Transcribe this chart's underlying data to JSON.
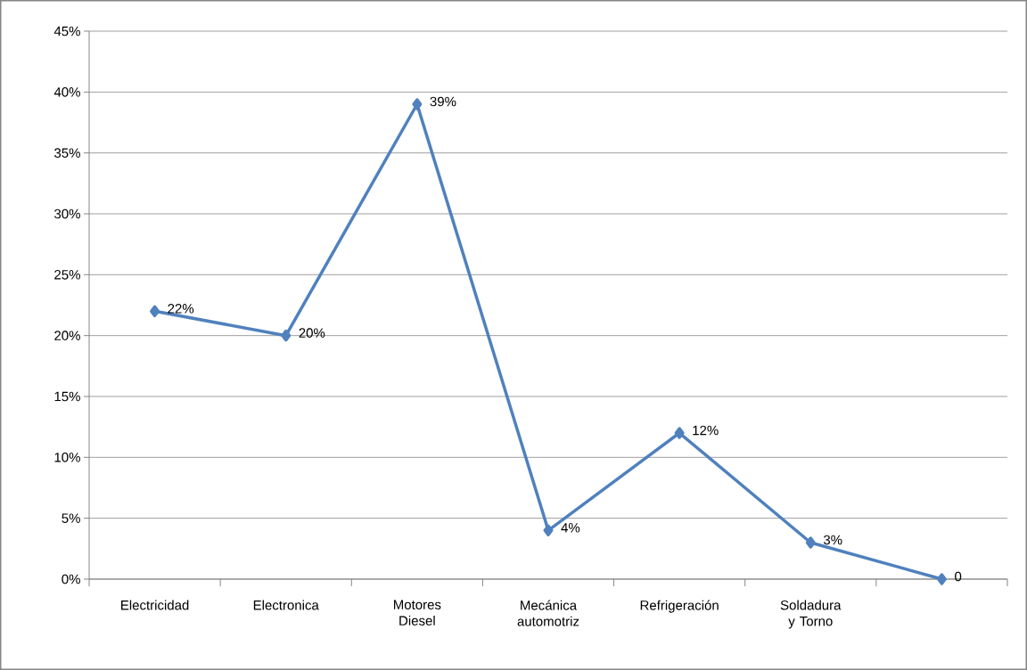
{
  "chart_data": {
    "type": "line",
    "categories": [
      "Electricidad",
      "Electronica",
      "Motores Diesel",
      "Mecánica automotriz",
      "Refrigeración",
      "Soldadura y Torno",
      null
    ],
    "series": [
      {
        "color": "#4f81bd",
        "values": [
          22,
          20,
          39,
          4,
          12,
          3,
          0
        ],
        "value_labels": [
          "22%",
          "20%",
          "39%",
          "4%",
          "12%",
          "3%",
          "0"
        ]
      }
    ],
    "ylim": [
      0,
      45
    ],
    "yticks": [
      {
        "value": 0,
        "label": "0%"
      },
      {
        "value": 5,
        "label": "5%"
      },
      {
        "value": 10,
        "label": "10%"
      },
      {
        "value": 15,
        "label": "15%"
      },
      {
        "value": 20,
        "label": "20%"
      },
      {
        "value": 25,
        "label": "25%"
      },
      {
        "value": 30,
        "label": "30%"
      },
      {
        "value": 35,
        "label": "35%"
      },
      {
        "value": 40,
        "label": "40%"
      },
      {
        "value": 45,
        "label": "45%"
      }
    ],
    "grid": "y",
    "marker": "diamond",
    "line_style": "solid"
  }
}
